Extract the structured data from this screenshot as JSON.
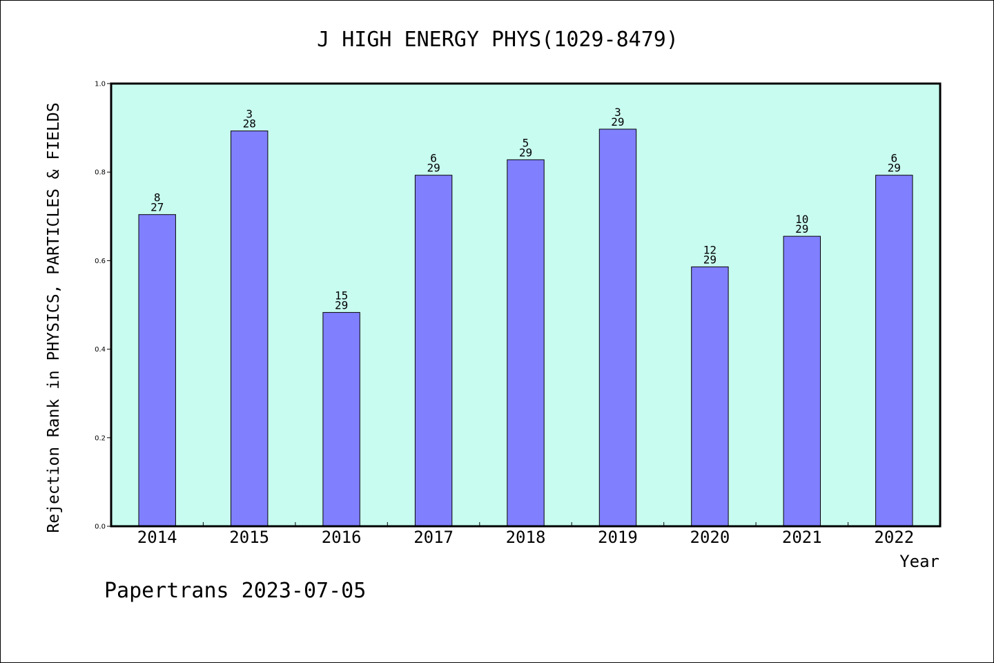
{
  "chart_data": {
    "type": "bar",
    "title": "J HIGH ENERGY PHYS(1029-8479)",
    "xlabel": "Year",
    "ylabel": "Rejection Rank in PHYSICS, PARTICLES & FIELDS",
    "categories": [
      "2014",
      "2015",
      "2016",
      "2017",
      "2018",
      "2019",
      "2020",
      "2021",
      "2022"
    ],
    "values": [
      0.704,
      0.893,
      0.483,
      0.793,
      0.828,
      0.897,
      0.586,
      0.655,
      0.793
    ],
    "ranks": [
      "8",
      "3",
      "15",
      "6",
      "5",
      "3",
      "12",
      "10",
      "6"
    ],
    "totals": [
      "27",
      "28",
      "29",
      "29",
      "29",
      "29",
      "29",
      "29",
      "29"
    ],
    "ylim": [
      0,
      1.0
    ],
    "yticks": [
      "0.0",
      "0.2",
      "0.4",
      "0.6",
      "0.8",
      "1.0"
    ],
    "grid": false,
    "colors": {
      "bar": "#8080ff",
      "plot_background": "#c8fcf0"
    }
  },
  "footer": "Papertrans 2023-07-05"
}
